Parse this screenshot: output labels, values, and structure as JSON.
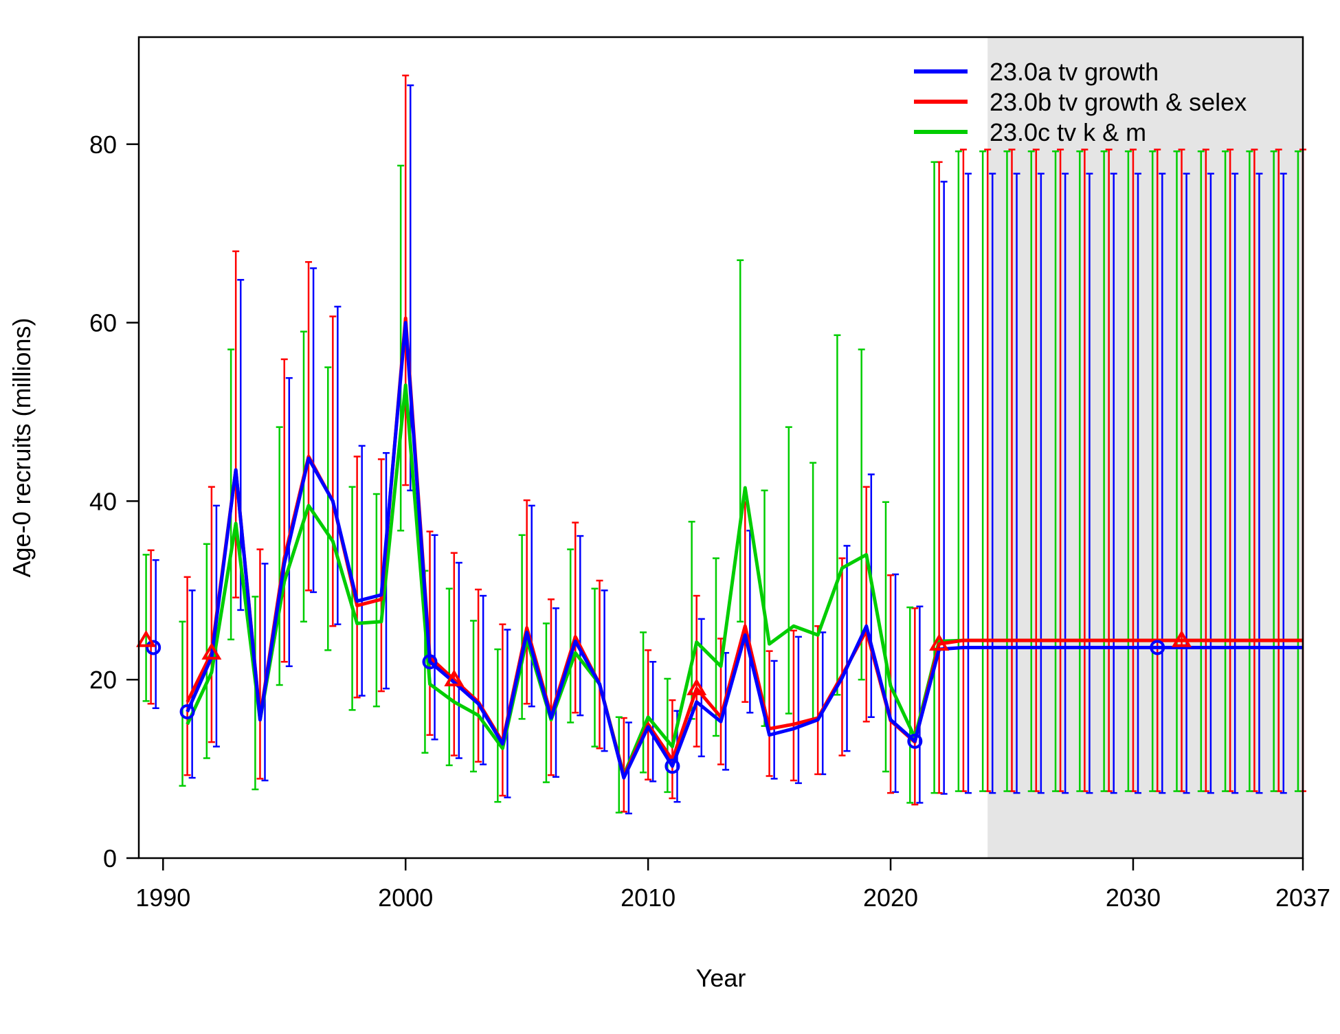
{
  "chart_data": {
    "type": "line",
    "title": "",
    "xlabel": "Year",
    "ylabel": "Age-0 recruits (millions)",
    "xlim": [
      1989,
      2037
    ],
    "ylim": [
      0,
      92
    ],
    "x_ticks": [
      1990,
      2000,
      2010,
      2020,
      2030,
      2037
    ],
    "x_tick_labels": [
      "1990",
      "2000",
      "2010",
      "2020",
      "2030",
      "2037"
    ],
    "y_ticks": [
      0,
      20,
      40,
      60,
      80
    ],
    "y_tick_labels": [
      "0",
      "20",
      "40",
      "60",
      "80"
    ],
    "forecast_shade_start": 2024,
    "forecast_shade_color": "#e5e5e5",
    "legend_position": "top-right",
    "grid": false,
    "series": [
      {
        "name": "23.0a tv growth",
        "color": "#0000ff",
        "marker": "circle",
        "x_offset": 0.2,
        "virgin": {
          "value": 23.6,
          "lower": 16.8,
          "upper": 33.4
        },
        "years": [
          1991,
          1992,
          1993,
          1994,
          1995,
          1996,
          1997,
          1998,
          1999,
          2000,
          2001,
          2002,
          2003,
          2004,
          2005,
          2006,
          2007,
          2008,
          2009,
          2010,
          2011,
          2012,
          2013,
          2014,
          2015,
          2016,
          2017,
          2018,
          2019,
          2020,
          2021,
          2022,
          2023,
          2024,
          2025,
          2026,
          2027,
          2028,
          2029,
          2030,
          2031,
          2032,
          2033,
          2034,
          2035,
          2036,
          2037
        ],
        "values": [
          16.4,
          22.5,
          43.5,
          15.5,
          33.0,
          44.8,
          40.0,
          28.8,
          29.5,
          60.0,
          22.0,
          19.7,
          17.3,
          12.8,
          25.3,
          15.7,
          24.3,
          19.5,
          9.0,
          14.7,
          10.3,
          17.5,
          15.3,
          25.0,
          13.8,
          14.5,
          15.5,
          20.2,
          26.0,
          15.5,
          13.1,
          23.4,
          23.6,
          23.6,
          23.6,
          23.6,
          23.6,
          23.6,
          23.6,
          23.6,
          23.6,
          23.6,
          23.6,
          23.6,
          23.6,
          23.6,
          23.6
        ],
        "lower": [
          9.0,
          12.5,
          27.8,
          8.7,
          21.5,
          29.8,
          26.2,
          18.2,
          19.0,
          41.2,
          13.3,
          11.2,
          10.5,
          6.8,
          17.0,
          9.1,
          16.0,
          12.0,
          5.0,
          8.6,
          6.3,
          11.4,
          9.9,
          16.3,
          8.9,
          8.4,
          9.4,
          12.0,
          15.8,
          7.4,
          6.2,
          7.2,
          7.3,
          7.3,
          7.3,
          7.3,
          7.3,
          7.3,
          7.3,
          7.3,
          7.3,
          7.3,
          7.3,
          7.3,
          7.3,
          7.3,
          7.3
        ],
        "upper": [
          30.0,
          39.5,
          64.8,
          33.0,
          53.8,
          66.1,
          61.8,
          46.2,
          45.4,
          86.6,
          36.2,
          33.1,
          29.4,
          25.6,
          39.5,
          28.0,
          36.1,
          30.0,
          15.2,
          22.0,
          16.5,
          26.8,
          23.0,
          36.7,
          22.1,
          24.8,
          25.3,
          35.0,
          43.0,
          31.8,
          28.2,
          75.8,
          76.7,
          76.7,
          76.7,
          76.7,
          76.7,
          76.7,
          76.7,
          76.7,
          76.7,
          76.7,
          76.7,
          76.7,
          76.7,
          76.7,
          76.7
        ],
        "marker_x": [
          1989.6,
          1991,
          2001,
          2011,
          2021,
          2031
        ]
      },
      {
        "name": "23.0b tv growth & selex",
        "color": "#ff0000",
        "marker": "triangle",
        "x_offset": 0.0,
        "virgin": {
          "value": 24.4,
          "lower": 17.3,
          "upper": 34.5
        },
        "years": [
          1991,
          1992,
          1993,
          1994,
          1995,
          1996,
          1997,
          1998,
          1999,
          2000,
          2001,
          2002,
          2003,
          2004,
          2005,
          2006,
          2007,
          2008,
          2009,
          2010,
          2011,
          2012,
          2013,
          2014,
          2015,
          2016,
          2017,
          2018,
          2019,
          2020,
          2021,
          2022,
          2023,
          2024,
          2025,
          2026,
          2027,
          2028,
          2029,
          2030,
          2031,
          2032,
          2033,
          2034,
          2035,
          2036,
          2037
        ],
        "values": [
          17.5,
          23.0,
          43.5,
          15.7,
          33.6,
          45.0,
          40.0,
          28.3,
          29.0,
          60.5,
          22.5,
          20.0,
          17.5,
          13.0,
          25.8,
          16.0,
          24.8,
          19.5,
          9.2,
          15.0,
          11.0,
          19.0,
          15.8,
          26.0,
          14.5,
          15.0,
          15.7,
          20.5,
          25.5,
          15.4,
          13.0,
          24.0,
          24.4,
          24.4,
          24.4,
          24.4,
          24.4,
          24.4,
          24.4,
          24.4,
          24.4,
          24.4,
          24.4,
          24.4,
          24.4,
          24.4,
          24.4
        ],
        "lower": [
          9.3,
          13.0,
          29.2,
          8.9,
          22.0,
          30.0,
          26.0,
          18.0,
          18.7,
          41.8,
          13.8,
          11.5,
          10.8,
          7.0,
          17.3,
          9.3,
          16.3,
          12.3,
          5.2,
          8.8,
          6.7,
          12.5,
          10.5,
          17.5,
          9.2,
          8.7,
          9.4,
          11.5,
          15.3,
          7.3,
          6.0,
          7.3,
          7.5,
          7.5,
          7.5,
          7.5,
          7.5,
          7.5,
          7.5,
          7.5,
          7.5,
          7.5,
          7.5,
          7.5,
          7.5,
          7.5,
          7.5
        ],
        "upper": [
          31.5,
          41.6,
          68.0,
          34.6,
          55.9,
          66.8,
          60.7,
          45.0,
          44.7,
          87.7,
          36.6,
          34.2,
          30.1,
          26.2,
          40.1,
          29.0,
          37.6,
          31.1,
          15.7,
          23.3,
          17.7,
          29.4,
          24.6,
          39.9,
          23.2,
          25.5,
          26.0,
          33.6,
          41.6,
          31.7,
          28.0,
          78.0,
          79.4,
          79.4,
          79.4,
          79.4,
          79.4,
          79.4,
          79.4,
          79.4,
          79.4,
          79.4,
          79.4,
          79.4,
          79.4,
          79.4,
          79.4
        ],
        "marker_x": [
          1989.3,
          1992,
          2002,
          2012,
          2022,
          2032
        ]
      },
      {
        "name": "23.0c tv k & m",
        "color": "#00cd00",
        "marker": "plus",
        "x_offset": -0.2,
        "virgin": {
          "value": 24.8,
          "lower": 17.6,
          "upper": 34.0
        },
        "years": [
          1991,
          1992,
          1993,
          1994,
          1995,
          1996,
          1997,
          1998,
          1999,
          2000,
          2001,
          2002,
          2003,
          2004,
          2005,
          2006,
          2007,
          2008,
          2009,
          2010,
          2011,
          2012,
          2013,
          2014,
          2015,
          2016,
          2017,
          2018,
          2019,
          2020,
          2021,
          2022,
          2023,
          2024,
          2025,
          2026,
          2027,
          2028,
          2029,
          2030,
          2031,
          2032,
          2033,
          2034,
          2035,
          2036,
          2037
        ],
        "values": [
          15.0,
          20.8,
          37.5,
          15.5,
          31.0,
          39.5,
          35.5,
          26.3,
          26.5,
          53.0,
          19.5,
          17.5,
          16.0,
          12.3,
          24.5,
          15.5,
          23.0,
          19.5,
          9.3,
          15.8,
          12.5,
          24.2,
          21.5,
          41.5,
          24.0,
          26.0,
          25.0,
          32.5,
          34.0,
          19.3,
          13.5,
          24.3,
          24.4,
          24.4,
          24.4,
          24.4,
          24.4,
          24.4,
          24.4,
          24.4,
          24.4,
          24.4,
          24.4,
          24.4,
          24.4,
          24.4,
          24.4
        ],
        "lower": [
          8.1,
          11.2,
          24.5,
          7.7,
          19.4,
          26.5,
          23.3,
          16.6,
          17.0,
          36.7,
          11.8,
          10.4,
          9.7,
          6.3,
          15.6,
          8.5,
          15.2,
          12.5,
          5.1,
          9.6,
          7.4,
          15.6,
          13.7,
          26.5,
          14.8,
          16.2,
          15.4,
          18.3,
          20.0,
          9.7,
          6.2,
          7.3,
          7.5,
          7.5,
          7.5,
          7.5,
          7.5,
          7.5,
          7.5,
          7.5,
          7.5,
          7.5,
          7.5,
          7.5,
          7.5,
          7.5,
          7.5
        ],
        "upper": [
          26.5,
          35.2,
          57.0,
          29.3,
          48.3,
          59.0,
          55.0,
          41.6,
          40.8,
          77.6,
          32.2,
          30.2,
          26.6,
          23.4,
          36.2,
          26.3,
          34.6,
          30.2,
          15.8,
          25.3,
          20.1,
          37.7,
          33.6,
          67.0,
          41.2,
          48.3,
          44.3,
          58.6,
          57.0,
          39.9,
          28.1,
          78.0,
          79.2,
          79.2,
          79.2,
          79.2,
          79.2,
          79.2,
          79.2,
          79.2,
          79.2,
          79.2,
          79.2,
          79.2,
          79.2,
          79.2,
          79.2
        ],
        "marker_x": []
      }
    ]
  }
}
